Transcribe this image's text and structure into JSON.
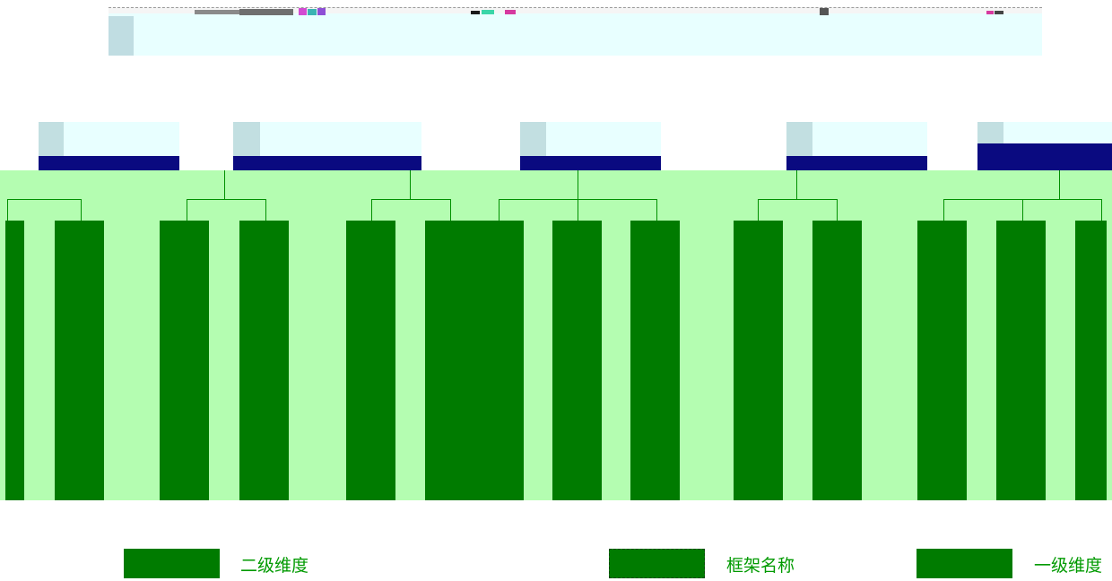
{
  "legend": {
    "second_level": "二级维度",
    "framework_name": "框架名称",
    "first_level": "一级维度"
  },
  "colors": {
    "second_level_fill": "#007b00",
    "first_level_bar": "#0a0a80",
    "diagram_background": "#b4fdb1",
    "header_fill": "#e8ffff",
    "connector": "#009000",
    "legend_text": "#009a00"
  }
}
